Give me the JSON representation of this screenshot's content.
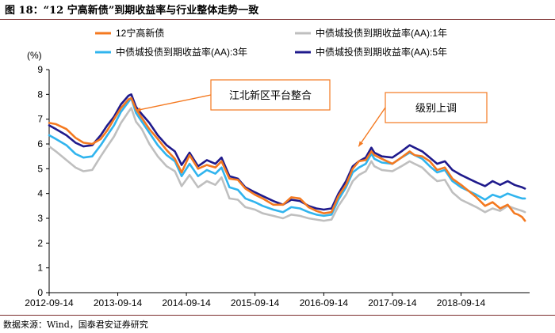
{
  "figure_title": "图 18：“12 宁高新债”到期收益率与行业整体走势一致",
  "source_note": "数据来源：Wind，国泰君安证券研究",
  "colors": {
    "series_1": "#f47920",
    "series_2": "#bfbfbf",
    "series_3": "#30b4ee",
    "series_4": "#1f1a8c",
    "annotation_border": "#f47920",
    "annotation_arrow": "#f47920"
  },
  "chart_data": {
    "type": "line",
    "y_unit_label": "(%)",
    "ylim": [
      0,
      9
    ],
    "yticks": [
      0,
      1,
      2,
      3,
      4,
      5,
      6,
      7,
      8,
      9
    ],
    "xlim": [
      "2012-09-14",
      "2019-09-14"
    ],
    "xticks": [
      "2012-09-14",
      "2013-09-14",
      "2014-09-14",
      "2015-09-14",
      "2016-09-14",
      "2017-09-14",
      "2018-09-14"
    ],
    "grid": false,
    "legend_placement": "top",
    "series": [
      {
        "name": "12宁高新债",
        "color_key": "series_1",
        "points": [
          [
            "2012-09-14",
            6.85
          ],
          [
            "2012-10-20",
            6.8
          ],
          [
            "2012-12-15",
            6.6
          ],
          [
            "2013-02-01",
            6.25
          ],
          [
            "2013-03-15",
            6.05
          ],
          [
            "2013-05-01",
            6.0
          ],
          [
            "2013-06-15",
            6.2
          ],
          [
            "2013-07-20",
            6.55
          ],
          [
            "2013-08-25",
            7.0
          ],
          [
            "2013-10-01",
            7.45
          ],
          [
            "2013-11-10",
            7.8
          ],
          [
            "2013-11-25",
            7.85
          ],
          [
            "2013-12-20",
            7.4
          ],
          [
            "2014-01-20",
            7.05
          ],
          [
            "2014-03-01",
            6.6
          ],
          [
            "2014-04-15",
            6.2
          ],
          [
            "2014-06-01",
            5.75
          ],
          [
            "2014-07-15",
            5.4
          ],
          [
            "2014-08-20",
            4.85
          ],
          [
            "2014-10-01",
            5.55
          ],
          [
            "2014-11-15",
            5.0
          ],
          [
            "2015-01-01",
            5.15
          ],
          [
            "2015-02-15",
            5.05
          ],
          [
            "2015-03-20",
            5.3
          ],
          [
            "2015-05-01",
            4.6
          ],
          [
            "2015-06-15",
            4.55
          ],
          [
            "2015-07-25",
            4.2
          ],
          [
            "2015-09-14",
            3.95
          ],
          [
            "2015-10-25",
            3.8
          ],
          [
            "2015-12-20",
            3.55
          ],
          [
            "2016-02-10",
            3.55
          ],
          [
            "2016-03-25",
            3.85
          ],
          [
            "2016-05-10",
            3.8
          ],
          [
            "2016-06-25",
            3.45
          ],
          [
            "2016-08-05",
            3.3
          ],
          [
            "2016-09-14",
            3.2
          ],
          [
            "2016-10-25",
            3.25
          ],
          [
            "2016-12-01",
            3.9
          ],
          [
            "2017-01-10",
            4.35
          ],
          [
            "2017-02-15",
            5.0
          ],
          [
            "2017-03-20",
            5.3
          ],
          [
            "2017-04-25",
            5.35
          ],
          [
            "2017-05-25",
            5.7
          ],
          [
            "2017-06-10",
            5.55
          ],
          [
            "2017-07-20",
            5.4
          ],
          [
            "2017-09-14",
            5.2
          ],
          [
            "2017-11-01",
            5.45
          ],
          [
            "2017-12-15",
            5.7
          ],
          [
            "2018-01-10",
            5.55
          ],
          [
            "2018-02-20",
            5.5
          ],
          [
            "2018-04-01",
            5.3
          ],
          [
            "2018-05-10",
            4.95
          ],
          [
            "2018-06-20",
            5.05
          ],
          [
            "2018-07-30",
            4.6
          ],
          [
            "2018-09-14",
            4.35
          ],
          [
            "2018-10-25",
            4.1
          ],
          [
            "2018-12-05",
            3.85
          ],
          [
            "2019-01-20",
            3.5
          ],
          [
            "2019-03-01",
            3.65
          ],
          [
            "2019-04-10",
            3.4
          ],
          [
            "2019-05-20",
            3.55
          ],
          [
            "2019-06-25",
            3.2
          ],
          [
            "2019-07-15",
            3.15
          ],
          [
            "2019-08-05",
            3.05
          ],
          [
            "2019-08-20",
            2.9
          ]
        ]
      },
      {
        "name": "中债城投债到期收益率(AA):1年",
        "color_key": "series_2",
        "points": [
          [
            "2012-09-14",
            5.9
          ],
          [
            "2012-10-20",
            5.7
          ],
          [
            "2012-12-15",
            5.35
          ],
          [
            "2013-02-01",
            5.05
          ],
          [
            "2013-03-15",
            4.9
          ],
          [
            "2013-05-01",
            4.95
          ],
          [
            "2013-06-15",
            5.5
          ],
          [
            "2013-07-20",
            5.9
          ],
          [
            "2013-08-25",
            6.3
          ],
          [
            "2013-10-01",
            6.85
          ],
          [
            "2013-11-10",
            7.3
          ],
          [
            "2013-11-25",
            7.45
          ],
          [
            "2013-12-20",
            6.9
          ],
          [
            "2014-01-20",
            6.6
          ],
          [
            "2014-03-01",
            6.0
          ],
          [
            "2014-04-15",
            5.5
          ],
          [
            "2014-06-01",
            5.1
          ],
          [
            "2014-07-15",
            4.9
          ],
          [
            "2014-08-20",
            4.3
          ],
          [
            "2014-10-01",
            4.75
          ],
          [
            "2014-11-15",
            4.25
          ],
          [
            "2015-01-01",
            4.5
          ],
          [
            "2015-02-15",
            4.35
          ],
          [
            "2015-03-20",
            4.65
          ],
          [
            "2015-05-01",
            3.8
          ],
          [
            "2015-06-15",
            3.75
          ],
          [
            "2015-07-25",
            3.45
          ],
          [
            "2015-09-14",
            3.35
          ],
          [
            "2015-10-25",
            3.2
          ],
          [
            "2015-12-20",
            3.1
          ],
          [
            "2016-02-10",
            3.0
          ],
          [
            "2016-03-25",
            3.15
          ],
          [
            "2016-05-10",
            3.1
          ],
          [
            "2016-06-25",
            3.0
          ],
          [
            "2016-08-05",
            2.95
          ],
          [
            "2016-09-14",
            2.9
          ],
          [
            "2016-10-25",
            2.95
          ],
          [
            "2016-12-01",
            3.5
          ],
          [
            "2017-01-10",
            3.95
          ],
          [
            "2017-02-15",
            4.5
          ],
          [
            "2017-03-20",
            4.75
          ],
          [
            "2017-04-25",
            4.9
          ],
          [
            "2017-05-25",
            5.3
          ],
          [
            "2017-06-10",
            5.1
          ],
          [
            "2017-07-20",
            4.95
          ],
          [
            "2017-09-14",
            4.9
          ],
          [
            "2017-11-01",
            5.1
          ],
          [
            "2017-12-15",
            5.3
          ],
          [
            "2018-01-10",
            5.2
          ],
          [
            "2018-02-20",
            5.05
          ],
          [
            "2018-04-01",
            4.75
          ],
          [
            "2018-05-10",
            4.5
          ],
          [
            "2018-06-20",
            4.55
          ],
          [
            "2018-07-30",
            4.05
          ],
          [
            "2018-09-14",
            3.75
          ],
          [
            "2018-10-25",
            3.6
          ],
          [
            "2018-12-05",
            3.45
          ],
          [
            "2019-01-20",
            3.25
          ],
          [
            "2019-03-01",
            3.4
          ],
          [
            "2019-04-10",
            3.3
          ],
          [
            "2019-05-20",
            3.5
          ],
          [
            "2019-06-25",
            3.4
          ],
          [
            "2019-07-15",
            3.35
          ],
          [
            "2019-08-05",
            3.3
          ],
          [
            "2019-08-20",
            3.25
          ]
        ]
      },
      {
        "name": "中债城投债到期收益率(AA):3年",
        "color_key": "series_3",
        "points": [
          [
            "2012-09-14",
            6.35
          ],
          [
            "2012-10-20",
            6.2
          ],
          [
            "2012-12-15",
            5.95
          ],
          [
            "2013-02-01",
            5.6
          ],
          [
            "2013-03-15",
            5.45
          ],
          [
            "2013-05-01",
            5.5
          ],
          [
            "2013-06-15",
            5.95
          ],
          [
            "2013-07-20",
            6.35
          ],
          [
            "2013-08-25",
            6.75
          ],
          [
            "2013-10-01",
            7.3
          ],
          [
            "2013-11-10",
            7.7
          ],
          [
            "2013-11-25",
            7.85
          ],
          [
            "2013-12-20",
            7.25
          ],
          [
            "2014-01-20",
            6.9
          ],
          [
            "2014-03-01",
            6.45
          ],
          [
            "2014-04-15",
            5.95
          ],
          [
            "2014-06-01",
            5.55
          ],
          [
            "2014-07-15",
            5.3
          ],
          [
            "2014-08-20",
            4.7
          ],
          [
            "2014-10-01",
            5.2
          ],
          [
            "2014-11-15",
            4.7
          ],
          [
            "2015-01-01",
            4.95
          ],
          [
            "2015-02-15",
            4.8
          ],
          [
            "2015-03-20",
            5.05
          ],
          [
            "2015-05-01",
            4.25
          ],
          [
            "2015-06-15",
            4.15
          ],
          [
            "2015-07-25",
            3.8
          ],
          [
            "2015-09-14",
            3.65
          ],
          [
            "2015-10-25",
            3.5
          ],
          [
            "2015-12-20",
            3.35
          ],
          [
            "2016-02-10",
            3.25
          ],
          [
            "2016-03-25",
            3.45
          ],
          [
            "2016-05-10",
            3.4
          ],
          [
            "2016-06-25",
            3.25
          ],
          [
            "2016-08-05",
            3.15
          ],
          [
            "2016-09-14",
            3.1
          ],
          [
            "2016-10-25",
            3.15
          ],
          [
            "2016-12-01",
            3.75
          ],
          [
            "2017-01-10",
            4.25
          ],
          [
            "2017-02-15",
            4.85
          ],
          [
            "2017-03-20",
            5.05
          ],
          [
            "2017-04-25",
            5.2
          ],
          [
            "2017-05-25",
            5.6
          ],
          [
            "2017-06-10",
            5.4
          ],
          [
            "2017-07-20",
            5.25
          ],
          [
            "2017-09-14",
            5.2
          ],
          [
            "2017-11-01",
            5.45
          ],
          [
            "2017-12-15",
            5.65
          ],
          [
            "2018-01-10",
            5.55
          ],
          [
            "2018-02-20",
            5.4
          ],
          [
            "2018-04-01",
            5.1
          ],
          [
            "2018-05-10",
            4.85
          ],
          [
            "2018-06-20",
            4.95
          ],
          [
            "2018-07-30",
            4.5
          ],
          [
            "2018-09-14",
            4.25
          ],
          [
            "2018-10-25",
            4.1
          ],
          [
            "2018-12-05",
            3.95
          ],
          [
            "2019-01-20",
            3.75
          ],
          [
            "2019-03-01",
            3.95
          ],
          [
            "2019-04-10",
            3.85
          ],
          [
            "2019-05-20",
            4.0
          ],
          [
            "2019-06-25",
            3.9
          ],
          [
            "2019-07-15",
            3.85
          ],
          [
            "2019-08-05",
            3.8
          ],
          [
            "2019-08-20",
            3.8
          ]
        ]
      },
      {
        "name": "中债城投债到期收益率(AA):5年",
        "color_key": "series_4",
        "points": [
          [
            "2012-09-14",
            6.75
          ],
          [
            "2012-10-20",
            6.6
          ],
          [
            "2012-12-15",
            6.35
          ],
          [
            "2013-02-01",
            6.05
          ],
          [
            "2013-03-15",
            5.9
          ],
          [
            "2013-05-01",
            5.95
          ],
          [
            "2013-06-15",
            6.35
          ],
          [
            "2013-07-20",
            6.75
          ],
          [
            "2013-08-25",
            7.1
          ],
          [
            "2013-10-01",
            7.6
          ],
          [
            "2013-11-10",
            7.95
          ],
          [
            "2013-11-25",
            8.0
          ],
          [
            "2013-12-20",
            7.5
          ],
          [
            "2014-01-20",
            7.2
          ],
          [
            "2014-03-01",
            6.85
          ],
          [
            "2014-04-15",
            6.35
          ],
          [
            "2014-06-01",
            5.95
          ],
          [
            "2014-07-15",
            5.7
          ],
          [
            "2014-08-20",
            5.15
          ],
          [
            "2014-10-01",
            5.65
          ],
          [
            "2014-11-15",
            5.1
          ],
          [
            "2015-01-01",
            5.35
          ],
          [
            "2015-02-15",
            5.2
          ],
          [
            "2015-03-20",
            5.45
          ],
          [
            "2015-05-01",
            4.7
          ],
          [
            "2015-06-15",
            4.6
          ],
          [
            "2015-07-25",
            4.25
          ],
          [
            "2015-09-14",
            4.05
          ],
          [
            "2015-10-25",
            3.9
          ],
          [
            "2015-12-20",
            3.7
          ],
          [
            "2016-02-10",
            3.55
          ],
          [
            "2016-03-25",
            3.75
          ],
          [
            "2016-05-10",
            3.7
          ],
          [
            "2016-06-25",
            3.5
          ],
          [
            "2016-08-05",
            3.4
          ],
          [
            "2016-09-14",
            3.35
          ],
          [
            "2016-10-25",
            3.4
          ],
          [
            "2016-12-01",
            4.0
          ],
          [
            "2017-01-10",
            4.5
          ],
          [
            "2017-02-15",
            5.1
          ],
          [
            "2017-03-20",
            5.3
          ],
          [
            "2017-04-25",
            5.45
          ],
          [
            "2017-05-25",
            5.85
          ],
          [
            "2017-06-10",
            5.65
          ],
          [
            "2017-07-20",
            5.5
          ],
          [
            "2017-09-14",
            5.45
          ],
          [
            "2017-11-01",
            5.7
          ],
          [
            "2017-12-15",
            5.95
          ],
          [
            "2018-01-10",
            5.85
          ],
          [
            "2018-02-20",
            5.7
          ],
          [
            "2018-04-01",
            5.45
          ],
          [
            "2018-05-10",
            5.2
          ],
          [
            "2018-06-20",
            5.3
          ],
          [
            "2018-07-30",
            4.95
          ],
          [
            "2018-09-14",
            4.75
          ],
          [
            "2018-10-25",
            4.6
          ],
          [
            "2018-12-05",
            4.45
          ],
          [
            "2019-01-20",
            4.3
          ],
          [
            "2019-03-01",
            4.5
          ],
          [
            "2019-04-10",
            4.35
          ],
          [
            "2019-05-20",
            4.5
          ],
          [
            "2019-06-25",
            4.35
          ],
          [
            "2019-07-15",
            4.3
          ],
          [
            "2019-08-05",
            4.25
          ],
          [
            "2019-08-20",
            4.2
          ]
        ]
      }
    ],
    "annotations": [
      {
        "text": "江北新区平台整合",
        "target_date": "2013-12-01",
        "target_value": 7.25,
        "anchor": "upper-right"
      },
      {
        "text": "级别上调",
        "target_date": "2017-03-01",
        "target_value": 5.8,
        "anchor": "upper-right"
      }
    ]
  }
}
